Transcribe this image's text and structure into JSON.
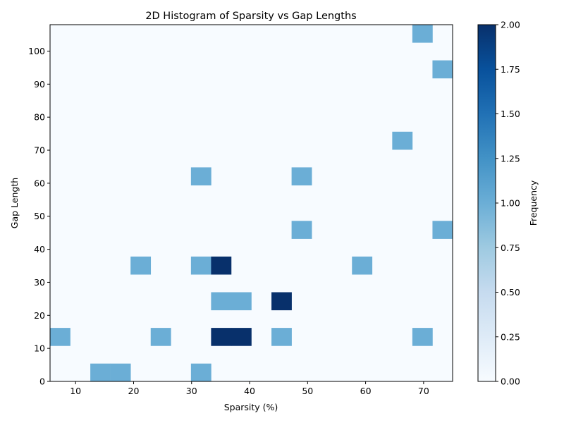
{
  "chart_data": {
    "type": "heatmap",
    "title": "2D Histogram of Sparsity vs Gap Lengths",
    "xlabel": "Sparsity (%)",
    "ylabel": "Gap Length",
    "xlim": [
      5.6,
      75.0
    ],
    "ylim": [
      0,
      108
    ],
    "x_ticks": [
      10,
      20,
      30,
      40,
      50,
      60,
      70
    ],
    "y_ticks": [
      0,
      10,
      20,
      30,
      40,
      50,
      60,
      70,
      80,
      90,
      100
    ],
    "bins": [
      20,
      20
    ],
    "cells": [
      {
        "col": 0,
        "row": 2,
        "count": 1
      },
      {
        "col": 2,
        "row": 0,
        "count": 1
      },
      {
        "col": 3,
        "row": 0,
        "count": 1
      },
      {
        "col": 4,
        "row": 6,
        "count": 1
      },
      {
        "col": 5,
        "row": 2,
        "count": 1
      },
      {
        "col": 7,
        "row": 0,
        "count": 1
      },
      {
        "col": 7,
        "row": 6,
        "count": 1
      },
      {
        "col": 7,
        "row": 11,
        "count": 1
      },
      {
        "col": 8,
        "row": 2,
        "count": 2
      },
      {
        "col": 8,
        "row": 4,
        "count": 1
      },
      {
        "col": 8,
        "row": 6,
        "count": 2
      },
      {
        "col": 9,
        "row": 2,
        "count": 2
      },
      {
        "col": 9,
        "row": 4,
        "count": 1
      },
      {
        "col": 11,
        "row": 2,
        "count": 1
      },
      {
        "col": 11,
        "row": 4,
        "count": 2
      },
      {
        "col": 12,
        "row": 8,
        "count": 1
      },
      {
        "col": 12,
        "row": 11,
        "count": 1
      },
      {
        "col": 15,
        "row": 6,
        "count": 1
      },
      {
        "col": 17,
        "row": 13,
        "count": 1
      },
      {
        "col": 18,
        "row": 2,
        "count": 1
      },
      {
        "col": 18,
        "row": 19,
        "count": 1
      },
      {
        "col": 19,
        "row": 8,
        "count": 1
      },
      {
        "col": 19,
        "row": 17,
        "count": 1
      }
    ],
    "colorbar": {
      "label": "Frequency",
      "colormap": "Blues",
      "range": [
        0,
        2
      ],
      "ticks": [
        "0.00",
        "0.25",
        "0.50",
        "0.75",
        "1.00",
        "1.25",
        "1.50",
        "1.75",
        "2.00"
      ]
    },
    "colors": {
      "count_0": "#f7fbff",
      "count_1": "#6baed6",
      "count_2": "#08306b"
    }
  }
}
